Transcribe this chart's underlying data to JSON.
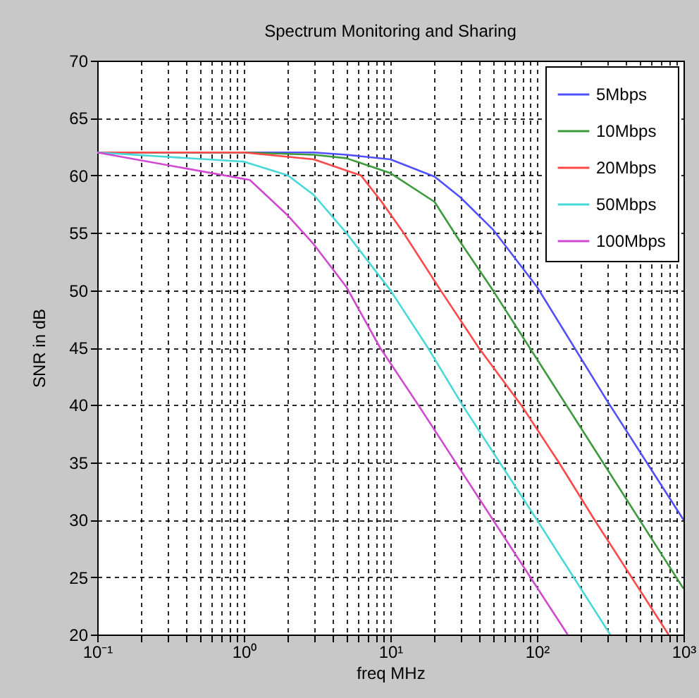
{
  "chart_data": {
    "type": "line",
    "title": "Spectrum Monitoring and Sharing",
    "xlabel": "freq MHz",
    "ylabel": "SNR in dB",
    "log": "x",
    "grid": true,
    "legend": "top right",
    "marker": "none",
    "line_style": "solid",
    "xlim": [
      0.1,
      1000
    ],
    "xticks": [
      {
        "value": 0.1,
        "label": "10⁻¹"
      },
      {
        "value": 1,
        "label": "10⁰"
      },
      {
        "value": 10,
        "label": "10¹"
      },
      {
        "value": 100,
        "label": "10²"
      },
      {
        "value": 1000,
        "label": "10³"
      }
    ],
    "ylim": [
      20,
      70
    ],
    "yticks": [
      20,
      25,
      30,
      35,
      40,
      45,
      50,
      55,
      60,
      65,
      70
    ],
    "series": [
      {
        "name": "5Mbps",
        "color": "#5050ff",
        "x": [
          0.1,
          3,
          5,
          10,
          20,
          30,
          50,
          100,
          300,
          1000
        ],
        "values": [
          62,
          62,
          61.8,
          61.4,
          59.9,
          58.1,
          55.3,
          50.3,
          40.4,
          30
        ]
      },
      {
        "name": "10Mbps",
        "color": "#3c9a3c",
        "x": [
          0.1,
          1,
          3,
          5,
          10,
          20,
          30,
          50,
          100,
          1000
        ],
        "values": [
          62,
          62,
          61.8,
          61.5,
          60.2,
          57.7,
          54.2,
          50,
          44,
          24
        ]
      },
      {
        "name": "20Mbps",
        "color": "#ff4848",
        "x": [
          0.1,
          1,
          3,
          6.3,
          8.6,
          12.3,
          22,
          40,
          78,
          141,
          247,
          790
        ],
        "values": [
          62,
          62,
          61.4,
          60,
          57.8,
          55,
          50,
          45,
          40,
          35,
          30,
          20
        ]
      },
      {
        "name": "50Mbps",
        "color": "#48d8d8",
        "x": [
          0.1,
          1,
          2,
          3,
          5,
          10,
          18,
          31,
          100,
          316
        ],
        "values": [
          62,
          61.2,
          60,
          58.3,
          55,
          50,
          45,
          40,
          30,
          20
        ]
      },
      {
        "name": "100Mbps",
        "color": "#d048d0",
        "x": [
          0.1,
          1.1,
          2,
          3,
          5,
          8.5,
          15.5,
          162
        ],
        "values": [
          62,
          59.6,
          56.5,
          54,
          50.3,
          45,
          40,
          20
        ]
      }
    ]
  }
}
